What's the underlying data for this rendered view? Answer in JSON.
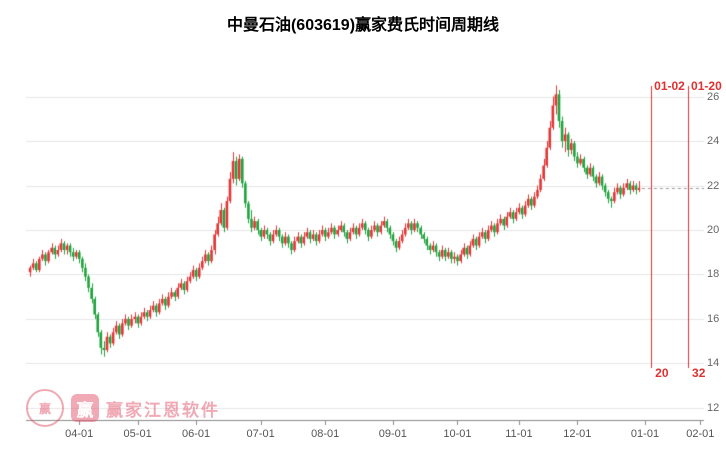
{
  "colors": {
    "up": "#e23535",
    "down": "#1fa23c",
    "grid": "#e6e6e6",
    "axis": "#8a8a8a",
    "tick_label": "#666666",
    "event": "#e03030",
    "dash_line": "#999999",
    "watermark": "#e2556d"
  },
  "watermark": {
    "text": "赢家江恩软件",
    "logo_char": "赢",
    "seal_char": "赢"
  },
  "chart_data": {
    "type": "candlestick",
    "title": "中曼石油(603619)赢家费氏时间周期线",
    "ylim": [
      11.5,
      27.6
    ],
    "y_ticks": [
      26,
      24,
      22,
      20,
      18,
      16,
      14,
      12
    ],
    "x_ticks": [
      {
        "label": "04-01",
        "i": 16
      },
      {
        "label": "05-01",
        "i": 35
      },
      {
        "label": "06-01",
        "i": 54
      },
      {
        "label": "07-01",
        "i": 75
      },
      {
        "label": "08-01",
        "i": 96
      },
      {
        "label": "09-01",
        "i": 118
      },
      {
        "label": "10-01",
        "i": 139
      },
      {
        "label": "11-01",
        "i": 159
      },
      {
        "label": "12-01",
        "i": 178
      },
      {
        "label": "01-01",
        "i": 200
      },
      {
        "label": "02-01",
        "i": 218
      }
    ],
    "last_close": 21.9,
    "fib_time_lines": [
      {
        "date": "01-02",
        "count": "20",
        "i": 202
      },
      {
        "date": "01-20",
        "count": "32",
        "i": 214
      }
    ],
    "grid": true,
    "legend": "none",
    "candles": [
      [
        18.1,
        18.4,
        17.9,
        18.3
      ],
      [
        18.3,
        18.7,
        18.2,
        18.5
      ],
      [
        18.5,
        18.6,
        18.1,
        18.2
      ],
      [
        18.2,
        18.8,
        18.1,
        18.7
      ],
      [
        18.7,
        19.1,
        18.6,
        18.9
      ],
      [
        18.9,
        19.0,
        18.4,
        18.6
      ],
      [
        18.6,
        19.1,
        18.5,
        19.0
      ],
      [
        19.0,
        19.4,
        18.9,
        19.2
      ],
      [
        19.2,
        19.3,
        18.7,
        18.9
      ],
      [
        18.9,
        19.3,
        18.8,
        19.1
      ],
      [
        19.1,
        19.6,
        19.0,
        19.4
      ],
      [
        19.4,
        19.5,
        18.9,
        19.1
      ],
      [
        19.1,
        19.4,
        18.9,
        19.3
      ],
      [
        19.3,
        19.4,
        18.8,
        19.0
      ],
      [
        19.0,
        19.2,
        18.6,
        18.8
      ],
      [
        18.8,
        19.1,
        18.7,
        19.0
      ],
      [
        19.0,
        19.1,
        18.5,
        18.7
      ],
      [
        18.7,
        18.8,
        18.1,
        18.3
      ],
      [
        18.3,
        18.5,
        17.7,
        17.9
      ],
      [
        17.9,
        18.0,
        17.2,
        17.4
      ],
      [
        17.4,
        17.6,
        16.7,
        16.9
      ],
      [
        16.9,
        17.0,
        16.0,
        16.2
      ],
      [
        16.2,
        16.3,
        15.2,
        15.4
      ],
      [
        15.4,
        15.5,
        14.4,
        14.7
      ],
      [
        14.7,
        15.0,
        14.3,
        14.6
      ],
      [
        14.6,
        15.4,
        14.5,
        15.2
      ],
      [
        15.2,
        15.3,
        14.7,
        14.9
      ],
      [
        14.9,
        15.6,
        14.8,
        15.4
      ],
      [
        15.4,
        15.9,
        15.3,
        15.7
      ],
      [
        15.7,
        15.8,
        15.1,
        15.3
      ],
      [
        15.3,
        16.0,
        15.2,
        15.8
      ],
      [
        15.8,
        16.2,
        15.7,
        16.0
      ],
      [
        16.0,
        16.1,
        15.5,
        15.7
      ],
      [
        15.7,
        16.2,
        15.6,
        16.0
      ],
      [
        16.0,
        16.3,
        15.8,
        16.1
      ],
      [
        16.1,
        16.2,
        15.6,
        15.8
      ],
      [
        15.8,
        16.3,
        15.7,
        16.1
      ],
      [
        16.1,
        16.5,
        16.0,
        16.3
      ],
      [
        16.3,
        16.4,
        15.9,
        16.1
      ],
      [
        16.1,
        16.6,
        16.0,
        16.4
      ],
      [
        16.4,
        16.8,
        16.3,
        16.6
      ],
      [
        16.6,
        16.7,
        16.1,
        16.3
      ],
      [
        16.3,
        16.9,
        16.2,
        16.7
      ],
      [
        16.7,
        17.1,
        16.6,
        16.9
      ],
      [
        16.9,
        17.0,
        16.4,
        16.6
      ],
      [
        16.6,
        17.2,
        16.5,
        17.0
      ],
      [
        17.0,
        17.4,
        16.9,
        17.2
      ],
      [
        17.2,
        17.3,
        16.8,
        17.0
      ],
      [
        17.0,
        17.6,
        16.9,
        17.4
      ],
      [
        17.4,
        17.8,
        17.3,
        17.6
      ],
      [
        17.6,
        17.7,
        17.1,
        17.3
      ],
      [
        17.3,
        17.9,
        17.2,
        17.7
      ],
      [
        17.7,
        18.1,
        17.6,
        17.9
      ],
      [
        17.9,
        18.4,
        17.8,
        18.2
      ],
      [
        18.2,
        18.3,
        17.7,
        17.9
      ],
      [
        17.9,
        18.5,
        17.8,
        18.3
      ],
      [
        18.3,
        18.8,
        18.2,
        18.6
      ],
      [
        18.6,
        19.1,
        18.5,
        18.9
      ],
      [
        18.9,
        19.0,
        18.4,
        18.6
      ],
      [
        18.6,
        19.3,
        18.5,
        19.1
      ],
      [
        19.1,
        20.0,
        18.9,
        19.8
      ],
      [
        19.8,
        20.6,
        19.7,
        20.3
      ],
      [
        20.3,
        21.2,
        20.2,
        20.9
      ],
      [
        20.9,
        21.0,
        19.9,
        20.1
      ],
      [
        20.1,
        21.5,
        20.0,
        21.3
      ],
      [
        21.3,
        22.6,
        21.2,
        22.3
      ],
      [
        22.3,
        23.5,
        22.1,
        23.1
      ],
      [
        23.1,
        23.3,
        22.0,
        22.3
      ],
      [
        22.3,
        23.4,
        22.2,
        23.2
      ],
      [
        23.2,
        23.3,
        21.9,
        22.1
      ],
      [
        22.1,
        22.2,
        21.0,
        21.2
      ],
      [
        21.2,
        21.3,
        20.3,
        20.5
      ],
      [
        20.5,
        20.9,
        19.9,
        20.1
      ],
      [
        20.1,
        20.6,
        20.0,
        20.4
      ],
      [
        20.4,
        20.5,
        19.8,
        20.0
      ],
      [
        20.0,
        20.1,
        19.5,
        19.7
      ],
      [
        19.7,
        20.2,
        19.6,
        20.0
      ],
      [
        20.0,
        20.1,
        19.6,
        19.8
      ],
      [
        19.8,
        19.9,
        19.3,
        19.5
      ],
      [
        19.5,
        20.0,
        19.4,
        19.8
      ],
      [
        19.8,
        20.2,
        19.7,
        20.0
      ],
      [
        20.0,
        20.1,
        19.5,
        19.7
      ],
      [
        19.7,
        19.8,
        19.2,
        19.4
      ],
      [
        19.4,
        19.9,
        19.3,
        19.7
      ],
      [
        19.7,
        19.8,
        19.2,
        19.4
      ],
      [
        19.4,
        19.5,
        18.9,
        19.1
      ],
      [
        19.1,
        19.7,
        19.0,
        19.5
      ],
      [
        19.5,
        19.9,
        19.4,
        19.7
      ],
      [
        19.7,
        19.8,
        19.2,
        19.4
      ],
      [
        19.4,
        19.9,
        19.3,
        19.7
      ],
      [
        19.7,
        20.1,
        19.6,
        19.9
      ],
      [
        19.9,
        20.0,
        19.4,
        19.6
      ],
      [
        19.6,
        20.0,
        19.5,
        19.8
      ],
      [
        19.8,
        19.9,
        19.3,
        19.5
      ],
      [
        19.5,
        20.0,
        19.4,
        19.8
      ],
      [
        19.8,
        20.2,
        19.7,
        20.0
      ],
      [
        20.0,
        20.1,
        19.5,
        19.7
      ],
      [
        19.7,
        20.1,
        19.6,
        19.9
      ],
      [
        19.9,
        20.3,
        19.8,
        20.1
      ],
      [
        20.1,
        20.2,
        19.6,
        19.8
      ],
      [
        19.8,
        20.2,
        19.7,
        20.0
      ],
      [
        20.0,
        20.4,
        19.9,
        20.2
      ],
      [
        20.2,
        20.3,
        19.7,
        19.9
      ],
      [
        19.9,
        20.0,
        19.4,
        19.6
      ],
      [
        19.6,
        20.1,
        19.5,
        19.9
      ],
      [
        19.9,
        20.3,
        19.8,
        20.1
      ],
      [
        20.1,
        20.2,
        19.6,
        19.8
      ],
      [
        19.8,
        20.3,
        19.7,
        20.1
      ],
      [
        20.1,
        20.5,
        20.0,
        20.3
      ],
      [
        20.3,
        20.4,
        19.8,
        20.0
      ],
      [
        20.0,
        20.1,
        19.5,
        19.7
      ],
      [
        19.7,
        20.2,
        19.6,
        20.0
      ],
      [
        20.0,
        20.4,
        19.9,
        20.2
      ],
      [
        20.2,
        20.3,
        19.7,
        19.9
      ],
      [
        19.9,
        20.4,
        19.8,
        20.2
      ],
      [
        20.2,
        20.6,
        20.1,
        20.4
      ],
      [
        20.4,
        20.5,
        19.9,
        20.1
      ],
      [
        20.1,
        20.2,
        19.6,
        19.8
      ],
      [
        19.8,
        19.9,
        19.3,
        19.5
      ],
      [
        19.5,
        19.6,
        19.0,
        19.2
      ],
      [
        19.2,
        19.7,
        19.1,
        19.5
      ],
      [
        19.5,
        20.0,
        19.4,
        19.8
      ],
      [
        19.8,
        20.3,
        19.7,
        20.1
      ],
      [
        20.1,
        20.5,
        20.0,
        20.3
      ],
      [
        20.3,
        20.4,
        19.8,
        20.0
      ],
      [
        20.0,
        20.5,
        19.9,
        20.3
      ],
      [
        20.3,
        20.4,
        19.9,
        20.1
      ],
      [
        20.1,
        20.2,
        19.6,
        19.8
      ],
      [
        19.8,
        19.9,
        19.4,
        19.6
      ],
      [
        19.6,
        19.7,
        19.1,
        19.3
      ],
      [
        19.3,
        19.4,
        18.9,
        19.1
      ],
      [
        19.1,
        19.5,
        19.0,
        19.3
      ],
      [
        19.3,
        19.4,
        18.8,
        19.0
      ],
      [
        19.0,
        19.1,
        18.6,
        18.8
      ],
      [
        18.8,
        19.3,
        18.7,
        19.1
      ],
      [
        19.1,
        19.2,
        18.6,
        18.8
      ],
      [
        18.8,
        19.2,
        18.7,
        19.0
      ],
      [
        19.0,
        19.1,
        18.5,
        18.7
      ],
      [
        18.7,
        19.0,
        18.5,
        18.8
      ],
      [
        18.8,
        18.9,
        18.4,
        18.6
      ],
      [
        18.6,
        19.1,
        18.5,
        18.9
      ],
      [
        18.9,
        19.4,
        18.8,
        19.2
      ],
      [
        19.2,
        19.3,
        18.7,
        18.9
      ],
      [
        18.9,
        19.5,
        18.8,
        19.3
      ],
      [
        19.3,
        19.8,
        19.2,
        19.6
      ],
      [
        19.6,
        19.7,
        19.1,
        19.3
      ],
      [
        19.3,
        19.9,
        19.2,
        19.7
      ],
      [
        19.7,
        20.1,
        19.6,
        19.9
      ],
      [
        19.9,
        20.0,
        19.4,
        19.6
      ],
      [
        19.6,
        20.2,
        19.5,
        20.0
      ],
      [
        20.0,
        20.4,
        19.9,
        20.2
      ],
      [
        20.2,
        20.3,
        19.7,
        19.9
      ],
      [
        19.9,
        20.5,
        19.8,
        20.3
      ],
      [
        20.3,
        20.7,
        20.2,
        20.5
      ],
      [
        20.5,
        20.6,
        20.0,
        20.2
      ],
      [
        20.2,
        20.8,
        20.1,
        20.6
      ],
      [
        20.6,
        21.0,
        20.5,
        20.8
      ],
      [
        20.8,
        20.9,
        20.3,
        20.5
      ],
      [
        20.5,
        21.0,
        20.4,
        20.8
      ],
      [
        20.8,
        21.2,
        20.7,
        21.0
      ],
      [
        21.0,
        21.1,
        20.5,
        20.7
      ],
      [
        20.7,
        21.3,
        20.6,
        21.1
      ],
      [
        21.1,
        21.6,
        21.0,
        21.4
      ],
      [
        21.4,
        21.5,
        20.9,
        21.1
      ],
      [
        21.1,
        21.7,
        21.0,
        21.5
      ],
      [
        21.5,
        22.0,
        21.4,
        21.8
      ],
      [
        21.8,
        22.5,
        21.7,
        22.3
      ],
      [
        22.3,
        23.2,
        22.2,
        22.9
      ],
      [
        22.9,
        24.0,
        22.8,
        23.7
      ],
      [
        23.7,
        24.9,
        23.6,
        24.6
      ],
      [
        24.6,
        26.0,
        24.5,
        25.6
      ],
      [
        25.6,
        26.5,
        25.2,
        26.1
      ],
      [
        26.1,
        26.3,
        24.6,
        24.9
      ],
      [
        24.9,
        25.1,
        23.7,
        24.0
      ],
      [
        24.0,
        24.6,
        23.5,
        24.3
      ],
      [
        24.3,
        24.4,
        23.3,
        23.6
      ],
      [
        23.6,
        24.1,
        23.4,
        23.9
      ],
      [
        23.9,
        24.0,
        23.1,
        23.3
      ],
      [
        23.3,
        23.5,
        22.8,
        23.0
      ],
      [
        23.0,
        23.4,
        22.9,
        23.2
      ],
      [
        23.2,
        23.3,
        22.6,
        22.8
      ],
      [
        22.8,
        22.9,
        22.3,
        22.5
      ],
      [
        22.5,
        23.0,
        22.4,
        22.8
      ],
      [
        22.8,
        22.9,
        22.2,
        22.4
      ],
      [
        22.4,
        22.5,
        21.9,
        22.1
      ],
      [
        22.1,
        22.6,
        22.0,
        22.4
      ],
      [
        22.4,
        22.5,
        21.8,
        22.0
      ],
      [
        22.0,
        22.1,
        21.5,
        21.7
      ],
      [
        21.7,
        21.8,
        21.2,
        21.4
      ],
      [
        21.4,
        21.5,
        21.0,
        21.3
      ],
      [
        21.3,
        21.9,
        21.2,
        21.7
      ],
      [
        21.7,
        22.1,
        21.6,
        21.9
      ],
      [
        21.9,
        22.0,
        21.4,
        21.6
      ],
      [
        21.6,
        22.1,
        21.5,
        21.9
      ],
      [
        21.9,
        22.3,
        21.8,
        22.1
      ],
      [
        22.1,
        22.2,
        21.6,
        21.8
      ],
      [
        21.8,
        22.2,
        21.7,
        22.0
      ],
      [
        22.0,
        22.1,
        21.6,
        21.8
      ],
      [
        21.8,
        22.2,
        21.7,
        21.9
      ]
    ]
  }
}
